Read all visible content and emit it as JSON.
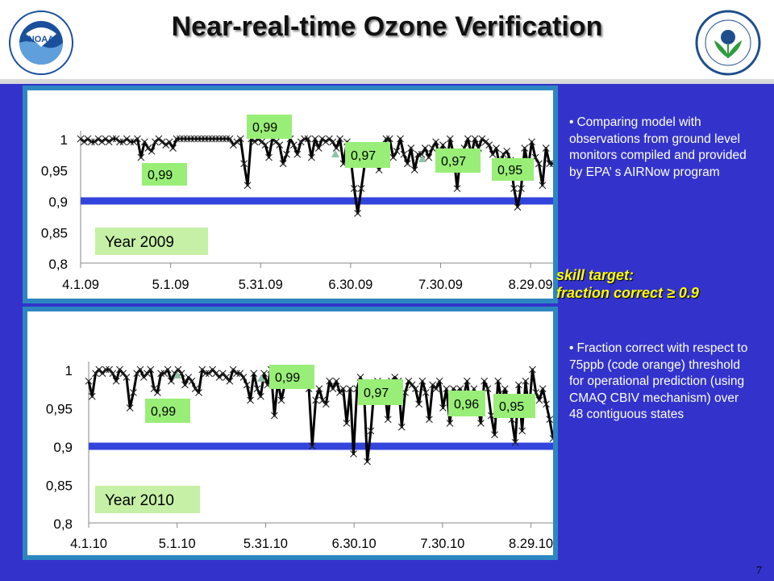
{
  "title": "Near-real-time Ozone Verification",
  "logos": {
    "left": "NOAA",
    "right": "EPA"
  },
  "colors": {
    "background": "#3333cc",
    "threshold": "#3344dd",
    "label_box": "#99ee77",
    "year_box": "#c6f0a6",
    "highlight": "#ffff00"
  },
  "side": {
    "bullet1": "Comparing model with observations from ground level monitors compiled and provided by EPA’ s AIRNow program",
    "skill_line1": "skill target:",
    "skill_line2": "fraction correct ≥ 0.9",
    "bullet2": "Fraction correct with respect to 75ppb (code orange) threshold for operational prediction (using CMAQ CBIV mechanism) over 48 contiguous states"
  },
  "page_number": "7",
  "chart_data": [
    {
      "type": "line",
      "year_label": "Year 2009",
      "ylim": [
        0.8,
        1.0
      ],
      "yticks": [
        "0,8",
        "0,85",
        "0,9",
        "0,95",
        "1"
      ],
      "xticks": [
        "4.1.09",
        "5.1.09",
        "5.31.09",
        "6.30.09",
        "7.30.09",
        "8.29.09"
      ],
      "threshold": 0.9,
      "annotations": [
        "0,99",
        "0,99",
        "0,97",
        "0,97",
        "0,95"
      ],
      "series": [
        {
          "values": [
            1.0,
            0.995,
            1.0,
            0.995,
            0.995,
            1.0,
            0.995,
            1.0,
            0.995,
            1.0,
            1.0,
            0.995,
            0.995,
            1.0,
            0.995,
            0.995,
            1.0,
            0.97,
            0.995,
            0.985,
            0.98,
            0.995,
            1.0,
            0.995,
            0.99,
            0.995,
            0.985,
            1.0,
            1.0,
            1.0,
            1.0,
            1.0,
            1.0,
            1.0,
            1.0,
            1.0,
            1.0,
            1.0,
            1.0,
            1.0,
            1.0,
            1.0,
            1.0,
            0.99,
            0.995,
            1.0,
            0.96,
            0.925,
            1.0,
            0.995,
            1.0,
            0.995,
            0.99,
            0.97,
            1.0,
            0.995,
            0.99,
            0.96,
            0.975,
            1.0,
            0.99,
            0.975,
            0.995,
            1.0,
            1.0,
            0.97,
            1.0,
            0.985,
            1.0,
            0.995,
            1.0,
            0.995,
            0.985,
            1.0,
            0.96,
            0.995,
            0.97,
            0.92,
            0.88,
            0.92,
            0.96,
            0.975,
            0.98,
            0.98,
            0.95,
            0.975,
            1.0,
            1.0,
            0.97,
            0.98,
            1.0,
            0.975,
            0.96,
            0.985,
            0.95,
            0.975,
            0.975,
            0.985,
            0.97,
            0.985,
            0.995,
            0.97,
            0.99,
            0.955,
            1.0,
            0.975,
            0.92,
            0.975,
            0.985,
            1.0,
            0.975,
            1.0,
            0.985,
            1.0,
            0.995,
            0.99,
            0.975,
            0.985,
            0.955,
            0.975,
            0.98,
            0.965,
            0.92,
            0.89,
            0.92,
            0.985,
            0.955,
            0.995,
            0.97,
            0.96,
            0.925,
            0.985,
            0.96,
            0.96
          ]
        }
      ]
    },
    {
      "type": "line",
      "year_label": "Year 2010",
      "ylim": [
        0.8,
        1.0
      ],
      "yticks": [
        "0,8",
        "0,85",
        "0,9",
        "0,95",
        "1"
      ],
      "xticks": [
        "4.1.10",
        "5.1.10",
        "5.31.10",
        "6.30.10",
        "7.30.10",
        "8.29.10"
      ],
      "threshold": 0.9,
      "annotations": [
        "0,99",
        "0,99",
        "0,97",
        "0,96",
        "0,95"
      ],
      "series": [
        {
          "values": [
            0.985,
            0.965,
            0.995,
            1.0,
            0.995,
            1.0,
            1.0,
            0.995,
            0.985,
            1.0,
            0.995,
            0.99,
            0.95,
            0.97,
            0.995,
            1.0,
            0.99,
            0.995,
            1.0,
            0.975,
            0.97,
            0.995,
            0.995,
            1.0,
            0.985,
            0.995,
            1.0,
            0.995,
            0.98,
            0.99,
            0.985,
            0.975,
            0.97,
            1.0,
            0.995,
            0.995,
            1.0,
            0.995,
            0.99,
            0.995,
            0.99,
            0.985,
            1.0,
            0.995,
            0.995,
            0.99,
            0.98,
            0.96,
            0.995,
            0.975,
            0.965,
            0.995,
            0.98,
            1.0,
            0.94,
            0.985,
            0.96,
            0.98,
            0.99,
            1.0,
            0.995,
            0.985,
            0.995,
            0.985,
            0.975,
            0.9,
            0.96,
            0.975,
            0.96,
            0.955,
            0.985,
            0.975,
            0.985,
            0.97,
            0.975,
            0.93,
            0.975,
            0.89,
            0.975,
            0.99,
            0.975,
            0.88,
            0.92,
            0.975,
            0.985,
            0.98,
            0.975,
            0.935,
            0.985,
            0.99,
            0.985,
            0.925,
            0.97,
            0.985,
            0.98,
            0.975,
            0.955,
            0.985,
            0.97,
            0.935,
            0.98,
            0.975,
            0.985,
            0.95,
            0.975,
            0.93,
            0.975,
            0.97,
            0.975,
            0.965,
            0.985,
            0.95,
            0.975,
            0.955,
            0.93,
            0.985,
            0.975,
            0.94,
            0.915,
            0.985,
            0.96,
            0.975,
            0.96,
            0.935,
            0.905,
            0.98,
            0.92,
            0.985,
            0.945,
            1.0,
            0.97,
            0.96,
            0.975,
            0.955,
            0.935,
            0.91
          ]
        }
      ]
    }
  ]
}
